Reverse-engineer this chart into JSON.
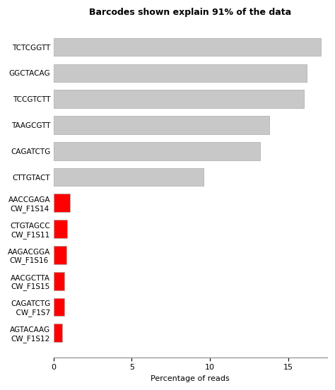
{
  "title": "Barcodes shown explain 91% of the data",
  "xlabel": "Percentage of reads",
  "categories": [
    "AGTACAAG\nCW_F1S12",
    "CAGATCTG\n  CW_F1S7",
    "AACGCTTA\nCW_F1S15",
    "AAGACGGA\nCW_F1S16",
    "CTGTAGCC\nCW_F1S11",
    "AACCGAGA\nCW_F1S14",
    "CTTGTACT",
    "CAGATCTG",
    "TAAGCGTT",
    "TCCGTCTT",
    "GGCTACAG",
    "TCTCGGTT"
  ],
  "values": [
    0.55,
    0.68,
    0.72,
    0.85,
    0.9,
    1.05,
    9.6,
    13.2,
    13.8,
    16.0,
    16.2,
    17.1
  ],
  "colors": [
    "#ff0000",
    "#ff0000",
    "#ff0000",
    "#ff0000",
    "#ff0000",
    "#ff0000",
    "#c8c8c8",
    "#c8c8c8",
    "#c8c8c8",
    "#c8c8c8",
    "#c8c8c8",
    "#c8c8c8"
  ],
  "xlim": [
    0,
    17.5
  ],
  "xticks": [
    0,
    5,
    10,
    15
  ],
  "bar_height": 0.7,
  "title_fontsize": 9,
  "label_fontsize": 7.5,
  "tick_fontsize": 8,
  "bg_color": "#ffffff",
  "edge_color": "#aaaaaa",
  "spine_color": "#888888"
}
